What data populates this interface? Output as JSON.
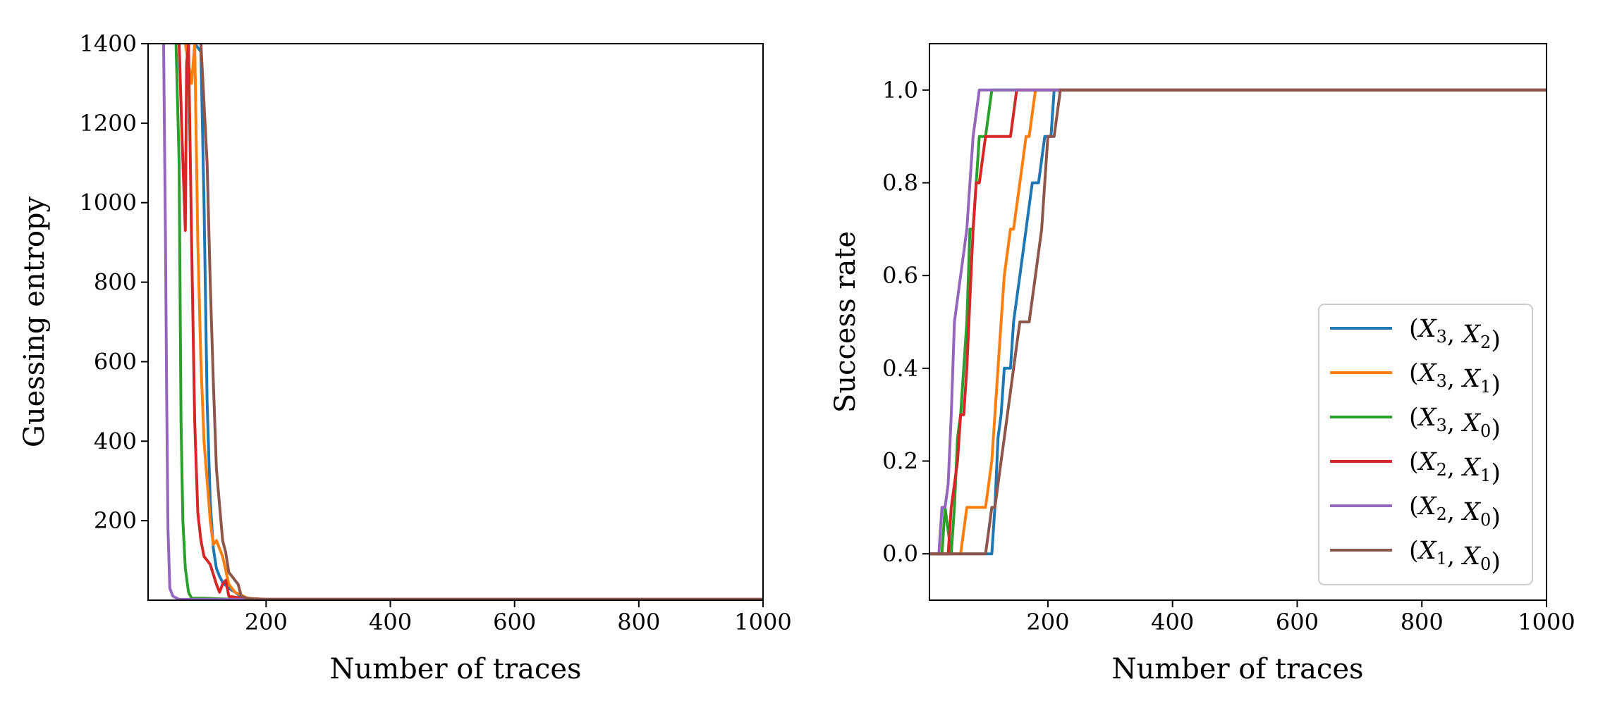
{
  "series_styles": [
    {
      "name": "(X3, X2)",
      "label_main": "X",
      "sub1": "3",
      "sub2": "2",
      "color": "#1f77b4"
    },
    {
      "name": "(X3, X1)",
      "label_main": "X",
      "sub1": "3",
      "sub2": "1",
      "color": "#ff7f0e"
    },
    {
      "name": "(X3, X0)",
      "label_main": "X",
      "sub1": "3",
      "sub2": "0",
      "color": "#2ca02c"
    },
    {
      "name": "(X2, X1)",
      "label_main": "X",
      "sub1": "2",
      "sub2": "1",
      "color": "#d62728"
    },
    {
      "name": "(X2, X0)",
      "label_main": "X",
      "sub1": "2",
      "sub2": "0",
      "color": "#9467bd"
    },
    {
      "name": "(X1, X0)",
      "label_main": "X",
      "sub1": "1",
      "sub2": "0",
      "color": "#8c564b"
    }
  ],
  "chart_data": [
    {
      "type": "line",
      "title": "",
      "xlabel": "Number of traces",
      "ylabel": "Guessing entropy",
      "xlim": [
        10,
        1000
      ],
      "ylim": [
        0,
        1400
      ],
      "xticks": [
        200,
        400,
        600,
        800,
        1000
      ],
      "yticks": [
        200,
        400,
        600,
        800,
        1000,
        1200,
        1400
      ],
      "grid": false,
      "legend": "none",
      "series": [
        {
          "name": "(X3, X2)",
          "x": [
            85,
            95,
            100,
            105,
            110,
            115,
            120,
            125,
            130,
            140,
            150,
            160,
            180,
            200,
            1000
          ],
          "y": [
            1400,
            1380,
            1000,
            500,
            250,
            130,
            80,
            60,
            45,
            30,
            20,
            8,
            3,
            2,
            2
          ]
        },
        {
          "name": "(X3, X1)",
          "x": [
            70,
            80,
            85,
            90,
            95,
            100,
            110,
            115,
            120,
            130,
            140,
            150,
            170,
            200,
            1000
          ],
          "y": [
            1400,
            1300,
            1400,
            900,
            600,
            400,
            200,
            140,
            150,
            110,
            40,
            20,
            5,
            2,
            2
          ]
        },
        {
          "name": "(X3, X0)",
          "x": [
            55,
            60,
            63,
            66,
            70,
            75,
            80,
            100,
            130,
            160,
            200,
            1000
          ],
          "y": [
            1400,
            1100,
            450,
            200,
            80,
            20,
            5,
            5,
            3,
            2,
            2,
            2
          ]
        },
        {
          "name": "(X2, X1)",
          "x": [
            60,
            65,
            70,
            72,
            75,
            80,
            85,
            90,
            95,
            100,
            110,
            120,
            125,
            130,
            135,
            140,
            160,
            200,
            1000
          ],
          "y": [
            1400,
            1150,
            930,
            1350,
            1400,
            900,
            450,
            220,
            150,
            110,
            90,
            40,
            20,
            40,
            50,
            10,
            5,
            2,
            2
          ]
        },
        {
          "name": "(X2, X0)",
          "x": [
            35,
            38,
            40,
            42,
            45,
            50,
            60,
            80,
            100,
            200,
            1000
          ],
          "y": [
            1400,
            900,
            500,
            180,
            30,
            10,
            2,
            2,
            2,
            2,
            2
          ]
        },
        {
          "name": "(X1, X0)",
          "x": [
            95,
            100,
            105,
            110,
            115,
            120,
            125,
            130,
            135,
            140,
            145,
            150,
            155,
            160,
            170,
            200,
            1000
          ],
          "y": [
            1400,
            1250,
            1100,
            800,
            550,
            330,
            240,
            150,
            120,
            70,
            60,
            50,
            40,
            10,
            4,
            2,
            2
          ]
        }
      ]
    },
    {
      "type": "line",
      "title": "",
      "xlabel": "Number of traces",
      "ylabel": "Success rate",
      "xlim": [
        10,
        1000
      ],
      "ylim": [
        -0.1,
        1.1
      ],
      "xticks": [
        200,
        400,
        600,
        800,
        1000
      ],
      "yticks": [
        0.0,
        0.2,
        0.4,
        0.6,
        0.8,
        1.0
      ],
      "ytick_labels": [
        "0.0",
        "0.2",
        "0.4",
        "0.6",
        "0.8",
        "1.0"
      ],
      "grid": false,
      "legend": "lower-right",
      "series": [
        {
          "name": "(X3, X2)",
          "x": [
            10,
            108,
            110,
            115,
            120,
            125,
            130,
            135,
            140,
            145,
            150,
            155,
            160,
            165,
            170,
            175,
            180,
            185,
            190,
            195,
            200,
            205,
            210,
            1000
          ],
          "y": [
            0,
            0,
            0,
            0.1,
            0.25,
            0.3,
            0.4,
            0.4,
            0.4,
            0.5,
            0.55,
            0.6,
            0.65,
            0.7,
            0.75,
            0.8,
            0.8,
            0.8,
            0.85,
            0.9,
            0.9,
            0.9,
            1.0,
            1.0
          ]
        },
        {
          "name": "(X3, X1)",
          "x": [
            10,
            60,
            65,
            70,
            75,
            80,
            100,
            105,
            110,
            115,
            120,
            125,
            130,
            135,
            140,
            145,
            150,
            155,
            160,
            165,
            170,
            175,
            180,
            1000
          ],
          "y": [
            0,
            0,
            0.05,
            0.1,
            0.1,
            0.1,
            0.1,
            0.15,
            0.2,
            0.3,
            0.4,
            0.5,
            0.6,
            0.65,
            0.7,
            0.7,
            0.75,
            0.8,
            0.85,
            0.9,
            0.9,
            0.95,
            1.0,
            1.0
          ]
        },
        {
          "name": "(X3, X0)",
          "x": [
            10,
            30,
            35,
            40,
            45,
            50,
            55,
            60,
            65,
            70,
            75,
            80,
            85,
            90,
            95,
            100,
            105,
            110,
            115,
            1000
          ],
          "y": [
            0,
            0,
            0.1,
            0.05,
            0,
            0.1,
            0.25,
            0.3,
            0.4,
            0.5,
            0.7,
            0.7,
            0.8,
            0.9,
            0.9,
            0.9,
            0.95,
            1.0,
            1.0,
            1.0
          ]
        },
        {
          "name": "(X2, X1)",
          "x": [
            10,
            40,
            45,
            50,
            55,
            60,
            65,
            70,
            75,
            80,
            85,
            90,
            95,
            100,
            105,
            110,
            115,
            120,
            125,
            130,
            135,
            140,
            145,
            150,
            1000
          ],
          "y": [
            0,
            0,
            0.1,
            0.15,
            0.2,
            0.3,
            0.3,
            0.4,
            0.55,
            0.7,
            0.8,
            0.8,
            0.85,
            0.9,
            0.9,
            0.9,
            0.9,
            0.9,
            0.9,
            0.9,
            0.9,
            0.9,
            0.95,
            1.0,
            1.0
          ]
        },
        {
          "name": "(X2, X0)",
          "x": [
            10,
            25,
            30,
            35,
            40,
            45,
            50,
            55,
            60,
            65,
            70,
            75,
            80,
            85,
            90,
            95,
            1000
          ],
          "y": [
            0,
            0,
            0.1,
            0.1,
            0.15,
            0.3,
            0.5,
            0.55,
            0.6,
            0.65,
            0.7,
            0.8,
            0.9,
            0.95,
            1.0,
            1.0,
            1.0
          ]
        },
        {
          "name": "(X1, X0)",
          "x": [
            10,
            100,
            105,
            110,
            115,
            120,
            125,
            130,
            135,
            140,
            145,
            150,
            155,
            160,
            165,
            170,
            175,
            180,
            185,
            190,
            195,
            200,
            205,
            210,
            215,
            220,
            225,
            1000
          ],
          "y": [
            0,
            0,
            0.05,
            0.1,
            0.1,
            0.15,
            0.2,
            0.25,
            0.3,
            0.35,
            0.4,
            0.45,
            0.5,
            0.5,
            0.5,
            0.5,
            0.55,
            0.6,
            0.65,
            0.7,
            0.8,
            0.9,
            0.9,
            0.9,
            0.95,
            1.0,
            1.0,
            1.0
          ]
        }
      ]
    }
  ]
}
